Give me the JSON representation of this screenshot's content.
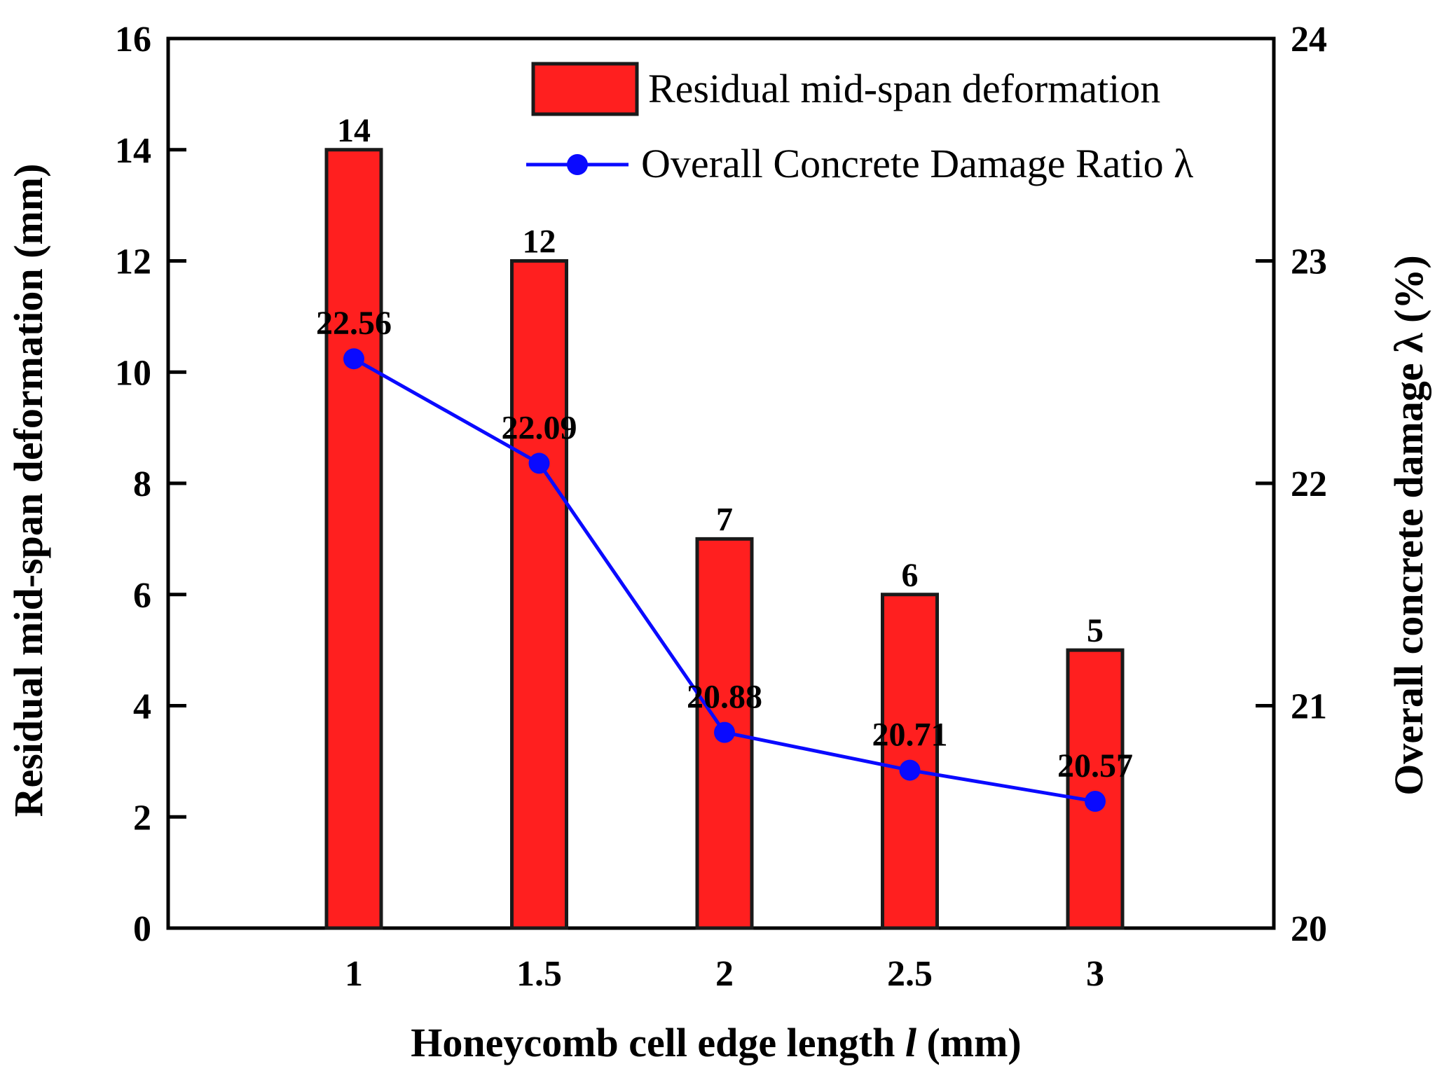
{
  "chart_data": {
    "type": "bar",
    "categories": [
      "1",
      "1.5",
      "2",
      "2.5",
      "3"
    ],
    "xlabel": "Honeycomb cell edge length",
    "xlabel_italic": "l",
    "xlabel_unit": "(mm)",
    "ylabel": "Residual mid-span deformation (mm)",
    "ylabel_right": "Overall concrete damage λ (%)",
    "ylim": [
      0,
      16
    ],
    "yticks": [
      "0",
      "2",
      "4",
      "6",
      "8",
      "10",
      "12",
      "14",
      "16"
    ],
    "ylim_right": [
      20,
      24
    ],
    "yticks_right": [
      "20",
      "21",
      "22",
      "23",
      "24"
    ],
    "series": [
      {
        "name": "Residual mid-span deformation",
        "type": "bar",
        "axis": "left",
        "color": "#ff1f1f",
        "values": [
          14,
          12,
          7,
          6,
          5
        ],
        "labels": [
          "14",
          "12",
          "7",
          "6",
          "5"
        ]
      },
      {
        "name": "Overall Concrete Damage Ratio λ",
        "type": "line",
        "axis": "right",
        "color": "#0a0aff",
        "values": [
          22.56,
          22.09,
          20.88,
          20.71,
          20.57
        ],
        "labels": [
          "22.56",
          "22.09",
          "20.88",
          "20.71",
          "20.57"
        ]
      }
    ],
    "legend_position": "top-right"
  }
}
